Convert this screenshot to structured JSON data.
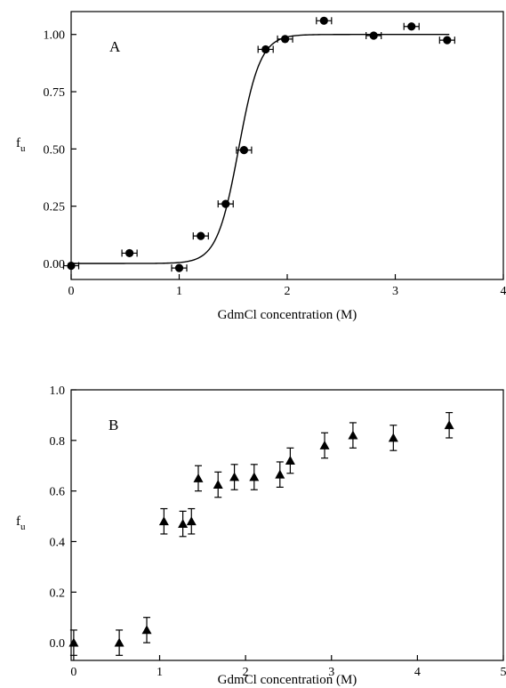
{
  "chart_data": [
    {
      "type": "scatter",
      "panel_label": "A",
      "xlabel": "GdmCl concentration  (M)",
      "ylabel": "f",
      "ylabel_sub": "u",
      "xlim": [
        0,
        4
      ],
      "ylim": [
        -0.07,
        1.1
      ],
      "x_ticks": [
        0,
        1,
        2,
        3,
        4
      ],
      "x_tick_labels": [
        "0",
        "1",
        "2",
        "3",
        "4"
      ],
      "y_ticks": [
        0,
        0.25,
        0.5,
        0.75,
        1.0
      ],
      "y_tick_labels": [
        "0.00",
        "0.25",
        "0.50",
        "0.75",
        "1.00"
      ],
      "marker": "circle",
      "error_bars": "horizontal",
      "points": [
        {
          "x": 0.0,
          "y": -0.01,
          "err": 0.07
        },
        {
          "x": 0.54,
          "y": 0.045,
          "err": 0.07
        },
        {
          "x": 1.0,
          "y": -0.02,
          "err": 0.07
        },
        {
          "x": 1.2,
          "y": 0.12,
          "err": 0.07
        },
        {
          "x": 1.43,
          "y": 0.26,
          "err": 0.07
        },
        {
          "x": 1.6,
          "y": 0.495,
          "err": 0.07
        },
        {
          "x": 1.8,
          "y": 0.935,
          "err": 0.07
        },
        {
          "x": 1.98,
          "y": 0.98,
          "err": 0.07
        },
        {
          "x": 2.34,
          "y": 1.06,
          "err": 0.07
        },
        {
          "x": 2.8,
          "y": 0.995,
          "err": 0.07
        },
        {
          "x": 3.15,
          "y": 1.035,
          "err": 0.07
        },
        {
          "x": 3.48,
          "y": 0.975,
          "err": 0.07
        }
      ],
      "fit_curve": {
        "type": "sigmoid",
        "midpoint": 1.55,
        "slope": 0.1,
        "lower": 0.0,
        "upper": 1.0,
        "x_range": [
          0,
          3.5
        ]
      }
    },
    {
      "type": "scatter",
      "panel_label": "B",
      "xlabel": "GdmCl concentration  (M)",
      "ylabel": "f",
      "ylabel_sub": "u",
      "xlim": [
        -0.03,
        5
      ],
      "ylim": [
        -0.07,
        1.0
      ],
      "x_ticks": [
        0,
        1,
        2,
        3,
        4,
        5
      ],
      "x_tick_labels": [
        "0",
        "1",
        "2",
        "3",
        "4",
        "5"
      ],
      "y_ticks": [
        0,
        0.2,
        0.4,
        0.6,
        0.8,
        1.0
      ],
      "y_tick_labels": [
        "0.0",
        "0.2",
        "0.4",
        "0.6",
        "0.8",
        "1.0"
      ],
      "marker": "triangle",
      "error_bars": "vertical",
      "points": [
        {
          "x": 0.0,
          "y": 0.0,
          "err": 0.05
        },
        {
          "x": 0.53,
          "y": 0.0,
          "err": 0.05
        },
        {
          "x": 0.85,
          "y": 0.05,
          "err": 0.05
        },
        {
          "x": 1.05,
          "y": 0.48,
          "err": 0.05
        },
        {
          "x": 1.27,
          "y": 0.47,
          "err": 0.05
        },
        {
          "x": 1.37,
          "y": 0.48,
          "err": 0.05
        },
        {
          "x": 1.45,
          "y": 0.65,
          "err": 0.05
        },
        {
          "x": 1.68,
          "y": 0.625,
          "err": 0.05
        },
        {
          "x": 1.87,
          "y": 0.655,
          "err": 0.05
        },
        {
          "x": 2.1,
          "y": 0.655,
          "err": 0.05
        },
        {
          "x": 2.4,
          "y": 0.665,
          "err": 0.05
        },
        {
          "x": 2.52,
          "y": 0.72,
          "err": 0.05
        },
        {
          "x": 2.92,
          "y": 0.78,
          "err": 0.05
        },
        {
          "x": 3.25,
          "y": 0.82,
          "err": 0.05
        },
        {
          "x": 3.72,
          "y": 0.81,
          "err": 0.05
        },
        {
          "x": 4.37,
          "y": 0.86,
          "err": 0.05
        }
      ]
    }
  ]
}
